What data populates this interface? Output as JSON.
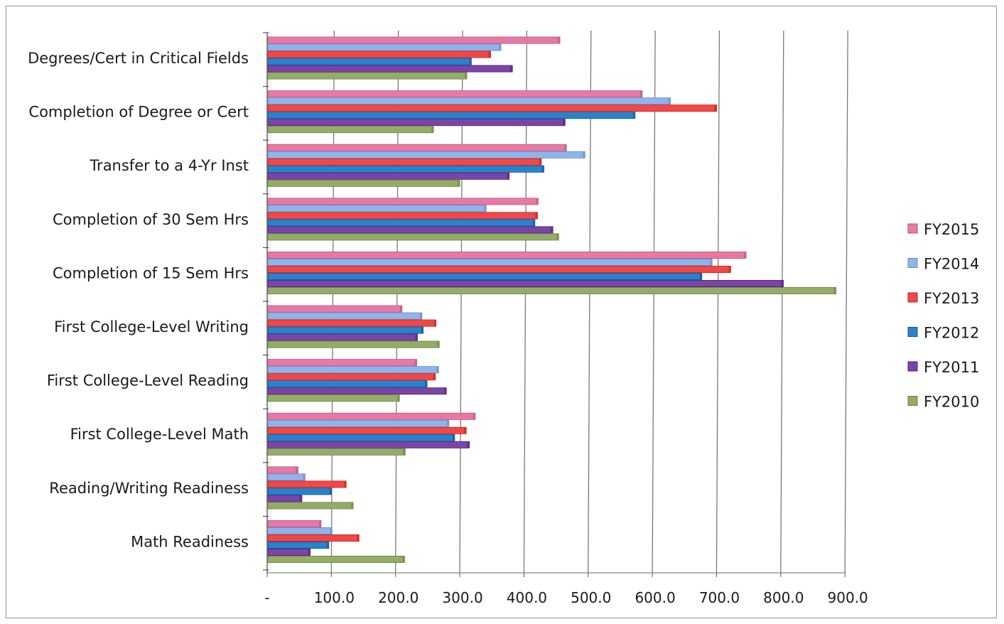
{
  "chart_data": {
    "type": "bar",
    "orientation": "horizontal",
    "title": "",
    "xlabel": "",
    "ylabel": "",
    "xlim": [
      0,
      900
    ],
    "x_ticks": [
      "-",
      "100.0",
      "200.0",
      "300.0",
      "400.0",
      "500.0",
      "600.0",
      "700.0",
      "800.0",
      "900.0"
    ],
    "grid": "vertical",
    "legend_position": "right",
    "categories": [
      "Degrees/Cert in Critical Fields",
      "Completion of Degree or Cert",
      "Transfer to a 4-Yr Inst",
      "Completion of 30 Sem Hrs",
      "Completion of 15 Sem Hrs",
      "First College-Level Writing",
      "First College-Level Reading",
      "First College-Level Math",
      "Reading/Writing Readiness",
      "Math Readiness"
    ],
    "series": [
      {
        "name": "FY2015",
        "color": "#e77aa5",
        "values": [
          455,
          583,
          465,
          421,
          745,
          209,
          232,
          323,
          47,
          83
        ]
      },
      {
        "name": "FY2014",
        "color": "#8fb4ec",
        "values": [
          363,
          627,
          494,
          340,
          692,
          240,
          266,
          282,
          58,
          100
        ]
      },
      {
        "name": "FY2013",
        "color": "#f04848",
        "values": [
          347,
          699,
          426,
          420,
          721,
          262,
          261,
          309,
          122,
          142
        ]
      },
      {
        "name": "FY2012",
        "color": "#2b82c8",
        "values": [
          317,
          572,
          430,
          416,
          676,
          242,
          248,
          291,
          99,
          95
        ]
      },
      {
        "name": "FY2011",
        "color": "#7b45a6",
        "values": [
          381,
          463,
          376,
          444,
          803,
          233,
          278,
          314,
          53,
          66
        ]
      },
      {
        "name": "FY2010",
        "color": "#93ac68",
        "values": [
          310,
          258,
          299,
          453,
          885,
          267,
          205,
          214,
          133,
          213
        ]
      }
    ]
  }
}
